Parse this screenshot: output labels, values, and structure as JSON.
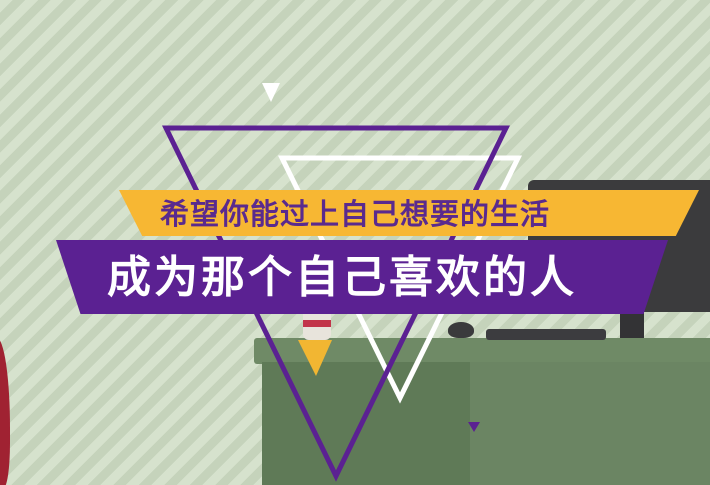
{
  "banner": {
    "line1": "希望你能过上自己想要的生活",
    "line2": "成为那个自己喜欢的人"
  },
  "colors": {
    "background": "#cfdcc6",
    "accent_purple": "#5b2192",
    "accent_yellow": "#f7b733",
    "text_purple": "#5a2a8e",
    "text_white": "#ffffff"
  },
  "icons": [
    "desk",
    "monitor",
    "keyboard",
    "mouse",
    "cup",
    "triangle-outline",
    "small-triangle"
  ]
}
